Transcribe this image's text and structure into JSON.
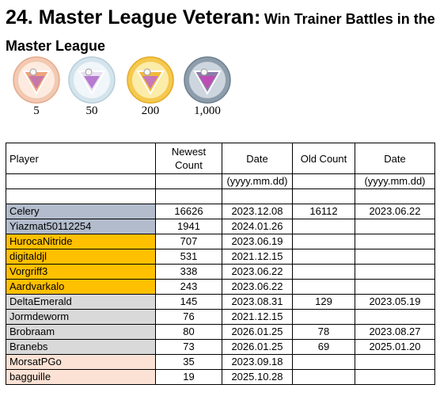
{
  "title": {
    "main": "24. Master League Veteran:",
    "sub": "Win Trainer Battles in the Master League"
  },
  "medals": [
    {
      "label": "5",
      "tier": "bronze",
      "ring": "#f0c7b0",
      "inner": "#fde9dd"
    },
    {
      "label": "50",
      "tier": "silver",
      "ring": "#c9dde6",
      "inner": "#eef4f8"
    },
    {
      "label": "200",
      "tier": "gold",
      "ring": "#f3c44a",
      "inner": "#fbe9a0"
    },
    {
      "label": "1,000",
      "tier": "platinum",
      "ring": "#8a9aa8",
      "inner": "#c2ccd6"
    }
  ],
  "table": {
    "headers": {
      "player": "Player",
      "newest_count": "Newest Count",
      "date": "Date",
      "old_count": "Old Count",
      "date2": "Date"
    },
    "format_row": {
      "date": "(yyyy.mm.dd)",
      "date2": "(yyyy.mm.dd)"
    },
    "rows": [
      {
        "player": "Celery",
        "newest": "16626",
        "date": "2023.12.08",
        "old": "16112",
        "old_date": "2023.06.22",
        "tier": "tier-gray-blue"
      },
      {
        "player": "Yiazmat50112254",
        "newest": "1941",
        "date": "2024.01.26",
        "old": "",
        "old_date": "",
        "tier": "tier-gray-blue"
      },
      {
        "player": "HurocaNitride",
        "newest": "707",
        "date": "2023.06.19",
        "old": "",
        "old_date": "",
        "tier": "tier-gold"
      },
      {
        "player": "digitaldjl",
        "newest": "531",
        "date": "2021.12.15",
        "old": "",
        "old_date": "",
        "tier": "tier-gold"
      },
      {
        "player": "Vorgriff3",
        "newest": "338",
        "date": "2023.06.22",
        "old": "",
        "old_date": "",
        "tier": "tier-gold"
      },
      {
        "player": "Aardvarkalo",
        "newest": "243",
        "date": "2023.06.22",
        "old": "",
        "old_date": "",
        "tier": "tier-gold"
      },
      {
        "player": "DeltaEmerald",
        "newest": "145",
        "date": "2023.08.31",
        "old": "129",
        "old_date": "2023.05.19",
        "tier": "tier-silver"
      },
      {
        "player": "Jormdeworm",
        "newest": "76",
        "date": "2021.12.15",
        "old": "",
        "old_date": "",
        "tier": "tier-silver"
      },
      {
        "player": "Brobraam",
        "newest": "80",
        "date": "2026.01.25",
        "old": "78",
        "old_date": "2023.08.27",
        "tier": "tier-silver"
      },
      {
        "player": "Branebs",
        "newest": "73",
        "date": "2026.01.25",
        "old": "69",
        "old_date": "2025.01.20",
        "tier": "tier-silver"
      },
      {
        "player": "MorsatPGo",
        "newest": "35",
        "date": "2023.09.18",
        "old": "",
        "old_date": "",
        "tier": "tier-bronze"
      },
      {
        "player": "bagguille",
        "newest": "19",
        "date": "2025.10.28",
        "old": "",
        "old_date": "",
        "tier": "tier-bronze"
      }
    ]
  }
}
